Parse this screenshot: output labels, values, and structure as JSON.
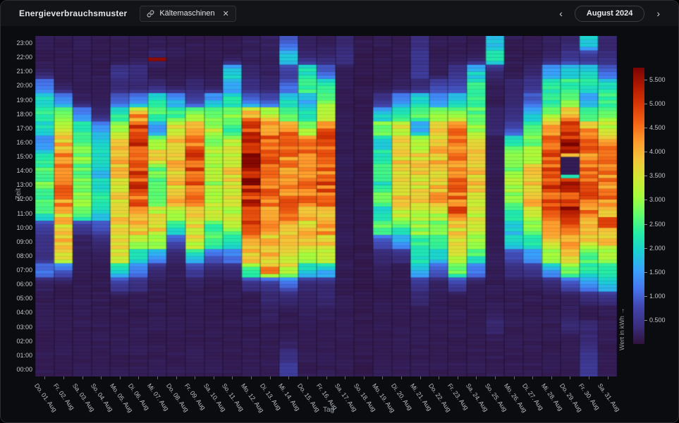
{
  "header": {
    "title": "Energieverbrauchsmuster",
    "tag": {
      "label": "Kältemaschinen",
      "remove_label": "✕"
    },
    "date_nav": {
      "prev": "‹",
      "label": "August 2024",
      "next": "›"
    }
  },
  "colors": {
    "page_bg": "#0b0c0f",
    "header_bg": "#121417",
    "border": "#2d2d32",
    "axis_text": "#c3c6ca",
    "axis_title": "#9aa0a8",
    "colormap": "turbo"
  },
  "chart_data": {
    "type": "heatmap",
    "title": "Energieverbrauchsmuster",
    "xlabel": "Tag",
    "ylabel": "Zeit",
    "unit": "kWh",
    "colorbar_label": "Wert in kWh →",
    "value_min": 0,
    "value_max": 5.75,
    "colorbar_ticks": [
      {
        "value": 5.5,
        "label": "5.500"
      },
      {
        "value": 5.0,
        "label": "5.000"
      },
      {
        "value": 4.5,
        "label": "4.500"
      },
      {
        "value": 4.0,
        "label": "4.000"
      },
      {
        "value": 3.5,
        "label": "3.500"
      },
      {
        "value": 3.0,
        "label": "3.000"
      },
      {
        "value": 2.5,
        "label": "2.500"
      },
      {
        "value": 2.0,
        "label": "2.000"
      },
      {
        "value": 1.5,
        "label": "1.500"
      },
      {
        "value": 1.0,
        "label": "1.000"
      },
      {
        "value": 0.5,
        "label": "0.500"
      }
    ],
    "y_categories_top_to_bottom": [
      "23:00",
      "22:00",
      "21:00",
      "20:00",
      "19:00",
      "18:00",
      "17:00",
      "16:00",
      "15:00",
      "14:00",
      "13:00",
      "12:00",
      "11:00",
      "10:00",
      "09:00",
      "08:00",
      "07:00",
      "06:00",
      "05:00",
      "04:00",
      "03:00",
      "02:00",
      "01:00",
      "00:00"
    ],
    "x_categories": [
      "Do. 01. Aug",
      "Fr. 02. Aug",
      "Sa. 03. Aug",
      "So. 04. Aug",
      "Mo. 05. Aug",
      "Di. 06. Aug",
      "Mi. 07. Aug",
      "Do. 08. Aug",
      "Fr. 09. Aug",
      "Sa. 10. Aug",
      "So. 11. Aug",
      "Mo. 12. Aug",
      "Di. 13. Aug",
      "Mi. 14. Aug",
      "Do. 15. Aug",
      "Fr. 16. Aug",
      "Sa. 17. Aug",
      "So. 18. Aug",
      "Mo. 19. Aug",
      "Di. 20. Aug",
      "Mi. 21. Aug",
      "Do. 22. Aug",
      "Fr. 23. Aug",
      "Sa. 24. Aug",
      "So. 25. Aug",
      "Mo. 26. Aug",
      "Di. 27. Aug",
      "Mi. 28. Aug",
      "Do. 29. Aug",
      "Fr. 30. Aug",
      "Sa. 31. Aug"
    ],
    "series_note": "values[day][hour], hour index 0 = 00:00 ... 23 = 23:00, unit kWh",
    "values": [
      [
        0.15,
        0.15,
        0.15,
        0.15,
        0.15,
        0.15,
        0.2,
        1.2,
        0.4,
        0.4,
        0.6,
        2.4,
        2.5,
        2.7,
        2.5,
        2.2,
        1.3,
        2.0,
        2.3,
        2.1,
        1.2,
        0.2,
        0.15,
        0.15
      ],
      [
        0.15,
        0.15,
        0.15,
        0.15,
        0.15,
        0.15,
        0.15,
        1.0,
        3.8,
        3.9,
        3.8,
        3.8,
        4.3,
        4.7,
        4.6,
        4.4,
        4.0,
        3.3,
        2.8,
        1.4,
        0.2,
        0.15,
        0.15,
        0.15
      ],
      [
        0.15,
        0.15,
        0.15,
        0.15,
        0.15,
        0.15,
        0.15,
        0.15,
        0.2,
        0.2,
        0.5,
        2.6,
        2.9,
        2.7,
        2.6,
        2.8,
        2.7,
        2.3,
        1.4,
        0.2,
        0.15,
        0.15,
        0.15,
        0.15
      ],
      [
        0.15,
        0.15,
        0.15,
        0.15,
        0.15,
        0.15,
        0.15,
        0.15,
        0.2,
        0.3,
        0.8,
        2.0,
        2.2,
        2.0,
        1.8,
        2.1,
        2.0,
        1.5,
        0.3,
        0.15,
        0.15,
        0.15,
        0.15,
        0.15
      ],
      [
        0.15,
        0.15,
        0.15,
        0.15,
        0.15,
        0.15,
        0.6,
        2.0,
        3.6,
        3.7,
        3.8,
        3.7,
        3.6,
        3.7,
        3.9,
        3.9,
        3.8,
        3.2,
        2.4,
        1.0,
        0.3,
        0.5,
        0.15,
        0.15
      ],
      [
        0.15,
        0.15,
        0.15,
        0.15,
        0.15,
        0.15,
        0.4,
        1.2,
        2.2,
        3.0,
        3.9,
        4.3,
        4.6,
        4.9,
        4.8,
        4.9,
        5.0,
        4.8,
        4.2,
        1.2,
        0.3,
        0.4,
        0.15,
        0.15
      ],
      [
        0.15,
        0.15,
        0.15,
        0.15,
        0.15,
        0.15,
        0.2,
        0.3,
        1.6,
        3.2,
        3.7,
        3.4,
        2.9,
        2.5,
        2.7,
        3.7,
        3.3,
        1.4,
        2.5,
        2.2,
        0.3,
        0.15,
        0.3,
        0.15
      ],
      [
        0.15,
        0.15,
        0.15,
        0.15,
        0.15,
        0.15,
        0.15,
        0.2,
        0.3,
        0.8,
        2.2,
        3.2,
        3.9,
        3.8,
        3.8,
        3.9,
        3.8,
        3.6,
        2.4,
        1.6,
        0.2,
        0.15,
        0.15,
        0.15
      ],
      [
        0.15,
        0.15,
        0.15,
        0.15,
        0.15,
        0.15,
        0.2,
        0.6,
        2.0,
        3.5,
        3.6,
        3.7,
        4.5,
        4.6,
        4.7,
        4.7,
        4.6,
        3.9,
        2.8,
        0.6,
        0.3,
        0.15,
        0.15,
        0.15
      ],
      [
        0.15,
        0.15,
        0.15,
        0.15,
        0.15,
        0.15,
        0.15,
        0.3,
        1.0,
        2.6,
        2.4,
        3.3,
        3.3,
        3.1,
        3.0,
        3.2,
        3.0,
        3.2,
        2.6,
        1.6,
        0.2,
        0.15,
        0.15,
        0.15
      ],
      [
        0.15,
        0.15,
        0.15,
        0.15,
        0.15,
        0.15,
        0.15,
        0.3,
        1.2,
        2.0,
        3.0,
        3.3,
        3.7,
        3.6,
        3.8,
        3.6,
        3.3,
        2.4,
        2.8,
        2.2,
        1.5,
        2.0,
        0.15,
        0.15
      ],
      [
        0.15,
        0.15,
        0.15,
        0.15,
        0.15,
        0.15,
        0.4,
        2.6,
        3.9,
        4.2,
        5.2,
        5.0,
        5.1,
        5.3,
        5.2,
        5.3,
        5.3,
        5.0,
        4.0,
        1.0,
        0.4,
        0.3,
        0.2,
        0.2
      ],
      [
        0.15,
        0.15,
        0.15,
        0.15,
        0.2,
        0.3,
        0.5,
        3.6,
        3.9,
        3.8,
        4.0,
        4.4,
        4.4,
        4.6,
        4.7,
        4.8,
        4.7,
        4.3,
        3.4,
        0.8,
        0.3,
        0.2,
        0.2,
        0.2
      ],
      [
        0.6,
        0.4,
        0.2,
        0.15,
        0.15,
        0.3,
        1.0,
        3.4,
        3.7,
        3.8,
        4.0,
        4.8,
        4.5,
        4.3,
        4.2,
        4.4,
        4.8,
        4.6,
        2.6,
        2.0,
        1.0,
        0.6,
        2.0,
        1.0
      ],
      [
        0.15,
        0.15,
        0.15,
        0.15,
        0.2,
        0.25,
        0.3,
        2.0,
        3.0,
        3.7,
        3.8,
        3.9,
        4.5,
        4.7,
        4.4,
        4.6,
        4.3,
        3.0,
        2.2,
        1.6,
        2.6,
        2.2,
        0.3,
        0.2
      ],
      [
        0.15,
        0.15,
        0.15,
        0.15,
        0.2,
        0.3,
        0.3,
        1.8,
        3.4,
        3.8,
        4.2,
        4.0,
        4.6,
        4.7,
        4.6,
        4.7,
        4.8,
        4.6,
        3.2,
        2.8,
        2.4,
        1.0,
        0.3,
        0.2
      ],
      [
        0.15,
        0.15,
        0.15,
        0.15,
        0.15,
        0.15,
        0.15,
        0.15,
        0.15,
        0.15,
        0.15,
        0.15,
        0.15,
        0.15,
        0.15,
        0.15,
        0.15,
        0.15,
        0.15,
        0.15,
        0.15,
        0.15,
        0.4,
        0.3
      ],
      [
        0.12,
        0.12,
        0.12,
        0.12,
        0.12,
        0.12,
        0.12,
        0.12,
        0.12,
        0.12,
        0.12,
        0.12,
        0.12,
        0.12,
        0.12,
        0.12,
        0.12,
        0.12,
        0.12,
        0.12,
        0.12,
        0.12,
        0.12,
        0.12
      ],
      [
        0.15,
        0.15,
        0.15,
        0.15,
        0.15,
        0.15,
        0.15,
        0.2,
        0.3,
        0.8,
        2.7,
        2.0,
        2.8,
        2.2,
        2.4,
        2.2,
        2.0,
        3.0,
        1.8,
        0.5,
        0.15,
        0.15,
        0.15,
        0.15
      ],
      [
        0.15,
        0.15,
        0.15,
        0.15,
        0.15,
        0.15,
        0.15,
        0.15,
        0.4,
        1.6,
        2.4,
        3.4,
        3.7,
        3.6,
        3.7,
        3.7,
        3.6,
        3.4,
        2.4,
        1.4,
        0.2,
        0.15,
        0.15,
        0.15
      ],
      [
        0.15,
        0.15,
        0.15,
        0.15,
        0.15,
        0.3,
        0.5,
        1.8,
        2.2,
        2.4,
        3.0,
        3.3,
        3.7,
        3.6,
        3.7,
        3.6,
        3.3,
        1.5,
        2.6,
        2.0,
        0.3,
        0.6,
        0.5,
        0.4
      ],
      [
        0.15,
        0.15,
        0.15,
        0.15,
        0.15,
        0.15,
        0.2,
        1.0,
        2.0,
        2.4,
        2.8,
        3.2,
        4.0,
        3.9,
        3.8,
        3.9,
        3.9,
        3.8,
        3.2,
        1.3,
        0.8,
        0.15,
        0.15,
        0.15
      ],
      [
        0.15,
        0.15,
        0.15,
        0.15,
        0.15,
        0.15,
        0.6,
        2.8,
        3.4,
        3.6,
        3.7,
        4.2,
        4.5,
        4.4,
        4.3,
        4.5,
        4.4,
        4.3,
        3.0,
        1.8,
        0.8,
        0.5,
        0.15,
        0.15
      ],
      [
        0.15,
        0.15,
        0.15,
        0.15,
        0.15,
        0.15,
        0.15,
        1.2,
        2.4,
        3.2,
        3.4,
        3.4,
        3.6,
        3.8,
        3.9,
        4.0,
        3.7,
        3.1,
        2.7,
        2.5,
        2.3,
        1.9,
        0.2,
        0.15
      ],
      [
        0.15,
        0.15,
        0.15,
        0.3,
        0.2,
        0.15,
        0.15,
        0.15,
        0.15,
        0.15,
        0.15,
        0.15,
        0.15,
        0.15,
        0.15,
        0.15,
        0.15,
        0.3,
        0.3,
        0.15,
        0.15,
        0.3,
        2.2,
        1.8
      ],
      [
        0.15,
        0.15,
        0.15,
        0.15,
        0.15,
        0.15,
        0.2,
        0.4,
        0.8,
        2.0,
        1.8,
        2.4,
        2.8,
        3.0,
        2.9,
        3.2,
        2.4,
        0.8,
        0.4,
        0.3,
        0.3,
        0.15,
        0.15,
        0.15
      ],
      [
        0.15,
        0.15,
        0.15,
        0.15,
        0.15,
        0.15,
        0.2,
        0.5,
        1.4,
        2.2,
        3.0,
        3.2,
        3.9,
        3.9,
        3.6,
        3.4,
        2.8,
        2.4,
        1.8,
        1.0,
        0.5,
        0.3,
        0.15,
        0.15
      ],
      [
        0.15,
        0.15,
        0.15,
        0.15,
        0.15,
        0.15,
        0.3,
        1.6,
        3.0,
        3.8,
        4.0,
        4.6,
        4.7,
        4.8,
        4.7,
        4.7,
        4.5,
        4.3,
        2.9,
        2.4,
        2.2,
        1.6,
        0.3,
        0.2
      ],
      [
        0.15,
        0.15,
        0.15,
        0.3,
        0.2,
        0.2,
        0.8,
        2.7,
        3.7,
        4.1,
        4.9,
        5.3,
        4.9,
        5.1,
        4.9,
        5.2,
        5.4,
        5.0,
        4.0,
        2.6,
        2.4,
        2.0,
        0.5,
        0.3
      ],
      [
        0.6,
        0.5,
        0.3,
        0.3,
        0.15,
        0.3,
        1.4,
        2.2,
        2.6,
        3.6,
        4.0,
        4.3,
        4.6,
        4.7,
        4.5,
        4.4,
        4.5,
        4.1,
        2.5,
        1.6,
        2.3,
        1.9,
        0.5,
        1.8
      ],
      [
        0.15,
        0.15,
        0.15,
        0.15,
        0.15,
        0.4,
        1.8,
        2.4,
        3.0,
        3.7,
        4.3,
        3.8,
        4.4,
        4.4,
        4.4,
        4.4,
        4.2,
        3.4,
        2.8,
        2.5,
        2.2,
        1.0,
        0.4,
        0.3
      ]
    ],
    "anomalies_note": "day is 1-based day of August, start in decimal hours, duration in hours",
    "anomalies": [
      {
        "day": 7,
        "start": 22.25,
        "duration": 0.25,
        "value": 5.6
      },
      {
        "day": 13,
        "start": 7.25,
        "duration": 0.5,
        "value": 4.5
      },
      {
        "day": 23,
        "start": 11.5,
        "duration": 0.5,
        "value": 5.0
      },
      {
        "day": 29,
        "start": 14.3,
        "duration": 1.15,
        "value": 0.15
      },
      {
        "day": 29,
        "start": 15.5,
        "duration": 0.25,
        "value": 3.9
      },
      {
        "day": 29,
        "start": 14.05,
        "duration": 0.25,
        "value": 2.2
      },
      {
        "day": 31,
        "start": 10.5,
        "duration": 0.75,
        "value": 4.9
      }
    ],
    "legend_position": "right",
    "grid": false
  }
}
